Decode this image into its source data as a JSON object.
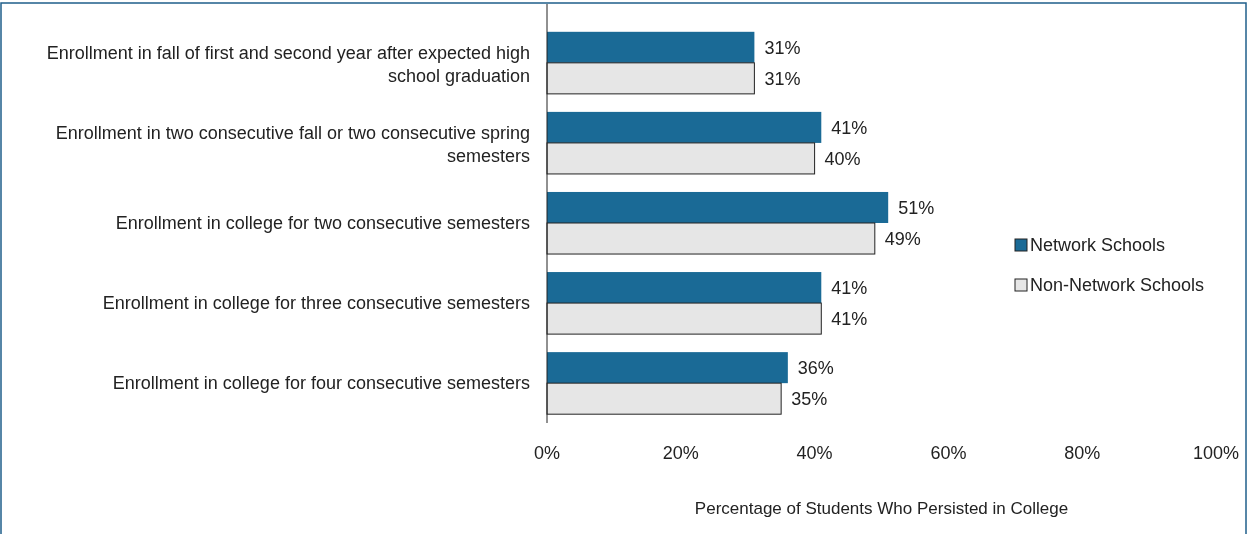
{
  "chart_data": {
    "type": "bar",
    "orientation": "horizontal",
    "xlabel": "Percentage of Students Who Persisted in College",
    "categories": [
      "Enrollment in fall of first and second year after expected high school graduation",
      "Enrollment in two consecutive fall or two consecutive spring semesters",
      "Enrollment in college for two consecutive semesters",
      "Enrollment in college for three consecutive semesters",
      "Enrollment in college for four consecutive semesters"
    ],
    "series": [
      {
        "name": "Network Schools",
        "color": "#1a6a96",
        "values": [
          31,
          41,
          51,
          41,
          36
        ],
        "value_labels": [
          "31%",
          "41%",
          "51%",
          "41%",
          "36%"
        ]
      },
      {
        "name": "Non-Network Schools",
        "color": "#e6e6e6",
        "values": [
          31,
          40,
          49,
          41,
          35
        ],
        "value_labels": [
          "31%",
          "40%",
          "49%",
          "41%",
          "35%"
        ]
      }
    ],
    "xlim": [
      0,
      100
    ],
    "xticks": [
      {
        "value": 0,
        "label": "0%"
      },
      {
        "value": 20,
        "label": "20%"
      },
      {
        "value": 40,
        "label": "40%"
      },
      {
        "value": 60,
        "label": "60%"
      },
      {
        "value": 80,
        "label": "80%"
      },
      {
        "value": 100,
        "label": "100%"
      }
    ],
    "legend": "right",
    "grid": false
  }
}
